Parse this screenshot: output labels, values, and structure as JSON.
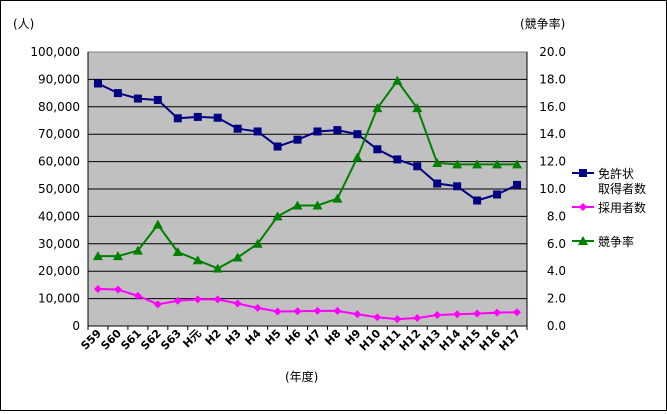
{
  "chart_data": {
    "type": "line",
    "left_axis_unit": "(人)",
    "right_axis_unit": "(競争率)",
    "xlabel": "(年度)",
    "categories": [
      "S59",
      "S60",
      "S61",
      "S62",
      "S63",
      "H元",
      "H2",
      "H3",
      "H4",
      "H5",
      "H6",
      "H7",
      "H8",
      "H9",
      "H10",
      "H11",
      "H12",
      "H13",
      "H14",
      "H15",
      "H16",
      "H17"
    ],
    "left_ylim": [
      0,
      100000
    ],
    "left_ticks": [
      "0",
      "10,000",
      "20,000",
      "30,000",
      "40,000",
      "50,000",
      "60,000",
      "70,000",
      "80,000",
      "90,000",
      "100,000"
    ],
    "right_ylim": [
      0,
      20
    ],
    "right_ticks": [
      "0.0",
      "2.0",
      "4.0",
      "6.0",
      "8.0",
      "10.0",
      "12.0",
      "14.0",
      "16.0",
      "18.0",
      "20.0"
    ],
    "grid": true,
    "legend_position": "right",
    "plot_background": "#c0c0c0",
    "series": [
      {
        "name": "免許状取得者数",
        "legend_lines": [
          "免許状",
          "取得者数"
        ],
        "axis": "left",
        "color": "#000080",
        "marker": "square",
        "values": [
          88500,
          85000,
          83000,
          82500,
          75800,
          76300,
          76000,
          72000,
          71000,
          65500,
          68000,
          71000,
          71500,
          70000,
          64500,
          60800,
          58300,
          52000,
          51000,
          45800,
          48000,
          51500
        ]
      },
      {
        "name": "採用者数",
        "legend_lines": [
          "採用者数"
        ],
        "axis": "left",
        "color": "#ff00ff",
        "marker": "diamond",
        "values": [
          13500,
          13300,
          11000,
          7900,
          9200,
          9700,
          9700,
          8200,
          6600,
          5300,
          5400,
          5500,
          5500,
          4300,
          3200,
          2500,
          2900,
          4000,
          4300,
          4500,
          4900,
          5000
        ]
      },
      {
        "name": "競争率",
        "legend_lines": [
          "競争率"
        ],
        "axis": "right",
        "color": "#008000",
        "marker": "triangle",
        "values": [
          5.1,
          5.1,
          5.5,
          7.4,
          5.4,
          4.8,
          4.2,
          5.0,
          6.0,
          8.0,
          8.8,
          8.8,
          9.3,
          12.3,
          15.9,
          17.9,
          15.9,
          11.9,
          11.8,
          11.8,
          11.8,
          11.8
        ]
      }
    ]
  }
}
